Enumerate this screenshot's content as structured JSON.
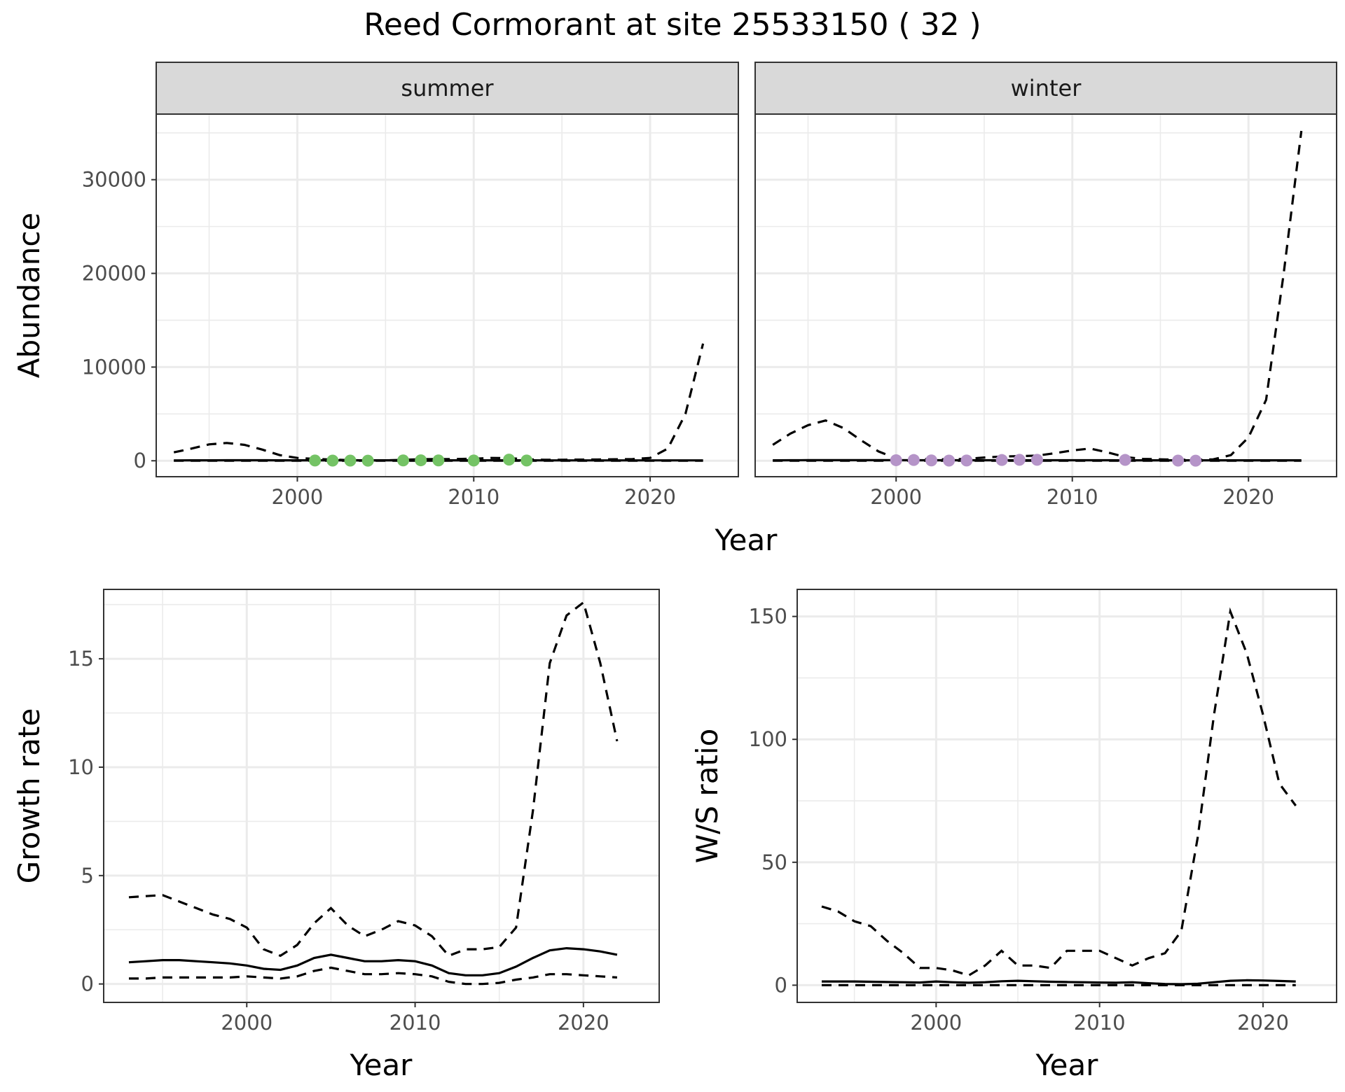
{
  "title": "Reed Cormorant at site 25533150 ( 32 )",
  "colors": {
    "summer_points": "#74c365",
    "winter_points": "#b594c8"
  },
  "chart_data": [
    {
      "id": "abundance",
      "type": "line",
      "ylabel": "Abundance",
      "xlabel": "Year",
      "xlim": [
        1992,
        2025
      ],
      "ylim": [
        -1700,
        37000
      ],
      "xticks": [
        2000,
        2010,
        2020
      ],
      "yticks": [
        0,
        10000,
        20000,
        30000
      ],
      "tick_labels_x": [
        "2000",
        "2010",
        "2020"
      ],
      "tick_labels_y": [
        "0",
        "10000",
        "20000",
        "30000"
      ],
      "grid": true,
      "facets": [
        {
          "label": "summer",
          "x": [
            1993,
            1994,
            1995,
            1996,
            1997,
            1998,
            1999,
            2000,
            2001,
            2002,
            2003,
            2004,
            2005,
            2006,
            2007,
            2008,
            2009,
            2010,
            2011,
            2012,
            2013,
            2014,
            2015,
            2016,
            2017,
            2018,
            2019,
            2020,
            2021,
            2022,
            2023
          ],
          "series": [
            {
              "style": "solid",
              "values": [
                40,
                45,
                50,
                55,
                55,
                55,
                50,
                50,
                50,
                45,
                45,
                45,
                45,
                45,
                45,
                45,
                45,
                45,
                45,
                45,
                45,
                40,
                40,
                40,
                40,
                40,
                40,
                40,
                40,
                40,
                40
              ]
            },
            {
              "style": "dashed",
              "values": [
                900,
                1300,
                1750,
                1900,
                1700,
                1200,
                600,
                300,
                200,
                120,
                60,
                40,
                50,
                100,
                170,
                180,
                180,
                220,
                300,
                280,
                150,
                100,
                110,
                120,
                130,
                160,
                180,
                300,
                1300,
                5000,
                12500
              ]
            },
            {
              "style": "dashed",
              "values": [
                0,
                0,
                0,
                0,
                0,
                0,
                0,
                0,
                0,
                0,
                0,
                0,
                0,
                0,
                0,
                0,
                0,
                0,
                0,
                0,
                0,
                0,
                0,
                0,
                0,
                0,
                0,
                0,
                0,
                0,
                0
              ]
            }
          ],
          "points": {
            "x": [
              2001,
              2002,
              2003,
              2004,
              2006,
              2007,
              2008,
              2010,
              2012,
              2013
            ],
            "y": [
              30,
              20,
              20,
              10,
              40,
              50,
              40,
              30,
              120,
              30
            ]
          }
        },
        {
          "label": "winter",
          "x": [
            1993,
            1994,
            1995,
            1996,
            1997,
            1998,
            1999,
            2000,
            2001,
            2002,
            2003,
            2004,
            2005,
            2006,
            2007,
            2008,
            2009,
            2010,
            2011,
            2012,
            2013,
            2014,
            2015,
            2016,
            2017,
            2018,
            2019,
            2020,
            2021,
            2022,
            2023
          ],
          "series": [
            {
              "style": "solid",
              "values": [
                50,
                55,
                60,
                65,
                65,
                65,
                60,
                60,
                55,
                55,
                55,
                55,
                55,
                55,
                55,
                55,
                55,
                55,
                55,
                55,
                50,
                50,
                45,
                45,
                45,
                45,
                45,
                45,
                45,
                45,
                45
              ]
            },
            {
              "style": "dashed",
              "values": [
                1700,
                2900,
                3800,
                4300,
                3500,
                2200,
                1000,
                250,
                200,
                180,
                150,
                200,
                350,
                450,
                500,
                550,
                800,
                1100,
                1300,
                900,
                400,
                200,
                150,
                100,
                110,
                150,
                600,
                2500,
                6500,
                20000,
                35200
              ]
            },
            {
              "style": "dashed",
              "values": [
                0,
                0,
                0,
                0,
                0,
                0,
                0,
                0,
                0,
                0,
                0,
                0,
                0,
                0,
                0,
                0,
                0,
                0,
                0,
                0,
                0,
                0,
                0,
                0,
                0,
                0,
                0,
                0,
                0,
                0,
                0
              ]
            }
          ],
          "points": {
            "x": [
              2000,
              2001,
              2002,
              2003,
              2004,
              2006,
              2007,
              2008,
              2013,
              2016,
              2017
            ],
            "y": [
              60,
              80,
              40,
              20,
              30,
              80,
              100,
              100,
              90,
              20,
              10
            ]
          }
        }
      ]
    },
    {
      "id": "growth",
      "type": "line",
      "ylabel": "Growth rate",
      "xlabel": "Year",
      "xlim": [
        1991.5,
        2024.5
      ],
      "ylim": [
        -0.85,
        18.2
      ],
      "xticks": [
        2000,
        2010,
        2020
      ],
      "yticks": [
        0,
        5,
        10,
        15
      ],
      "tick_labels_x": [
        "2000",
        "2010",
        "2020"
      ],
      "tick_labels_y": [
        "0",
        "5",
        "10",
        "15"
      ],
      "grid": true,
      "x": [
        1993,
        1994,
        1995,
        1996,
        1997,
        1998,
        1999,
        2000,
        2001,
        2002,
        2003,
        2004,
        2005,
        2006,
        2007,
        2008,
        2009,
        2010,
        2011,
        2012,
        2013,
        2014,
        2015,
        2016,
        2017,
        2018,
        2019,
        2020,
        2021,
        2022
      ],
      "series": [
        {
          "style": "solid",
          "values": [
            1.0,
            1.05,
            1.1,
            1.1,
            1.05,
            1.0,
            0.95,
            0.85,
            0.7,
            0.65,
            0.85,
            1.2,
            1.35,
            1.2,
            1.05,
            1.05,
            1.1,
            1.05,
            0.85,
            0.5,
            0.4,
            0.4,
            0.5,
            0.8,
            1.2,
            1.55,
            1.65,
            1.6,
            1.5,
            1.35
          ]
        },
        {
          "style": "dashed",
          "values": [
            4.0,
            4.05,
            4.1,
            3.8,
            3.5,
            3.2,
            3.0,
            2.6,
            1.6,
            1.3,
            1.8,
            2.8,
            3.5,
            2.7,
            2.2,
            2.5,
            2.9,
            2.7,
            2.2,
            1.3,
            1.6,
            1.6,
            1.7,
            2.6,
            8.0,
            14.8,
            17.0,
            17.6,
            14.8,
            11.2
          ]
        },
        {
          "style": "dashed",
          "values": [
            0.25,
            0.25,
            0.3,
            0.3,
            0.3,
            0.3,
            0.3,
            0.35,
            0.3,
            0.25,
            0.35,
            0.6,
            0.75,
            0.6,
            0.45,
            0.45,
            0.5,
            0.45,
            0.35,
            0.1,
            0.0,
            0.0,
            0.05,
            0.2,
            0.3,
            0.45,
            0.45,
            0.4,
            0.35,
            0.3
          ]
        }
      ]
    },
    {
      "id": "ratio",
      "type": "line",
      "ylabel": "W/S ratio",
      "xlabel": "Year",
      "xlim": [
        1991.5,
        2024.5
      ],
      "ylim": [
        -7,
        161
      ],
      "xticks": [
        2000,
        2010,
        2020
      ],
      "yticks": [
        0,
        50,
        100,
        150
      ],
      "tick_labels_x": [
        "2000",
        "2010",
        "2020"
      ],
      "tick_labels_y": [
        "0",
        "50",
        "100",
        "150"
      ],
      "grid": true,
      "x": [
        1993,
        1994,
        1995,
        1996,
        1997,
        1998,
        1999,
        2000,
        2001,
        2002,
        2003,
        2004,
        2005,
        2006,
        2007,
        2008,
        2009,
        2010,
        2011,
        2012,
        2013,
        2014,
        2015,
        2016,
        2017,
        2018,
        2019,
        2020,
        2021,
        2022
      ],
      "series": [
        {
          "style": "solid",
          "values": [
            1.5,
            1.5,
            1.5,
            1.4,
            1.3,
            1.2,
            1.1,
            1.5,
            1.2,
            1.0,
            1.2,
            1.6,
            1.8,
            1.6,
            1.4,
            1.3,
            1.2,
            1.1,
            1.0,
            1.2,
            0.8,
            0.5,
            0.4,
            0.6,
            1.2,
            1.8,
            2.0,
            1.9,
            1.7,
            1.5
          ]
        },
        {
          "style": "dashed",
          "values": [
            32,
            30,
            26,
            24,
            18,
            13,
            7,
            7,
            6,
            4,
            8,
            14,
            8,
            8,
            7,
            14,
            14,
            14,
            11,
            8,
            11,
            13,
            22,
            60,
            110,
            152,
            135,
            110,
            82,
            73
          ]
        },
        {
          "style": "dashed",
          "values": [
            0,
            0,
            0,
            0,
            0,
            0,
            0,
            0,
            0,
            0,
            0,
            0,
            0,
            0,
            0,
            0,
            0,
            0,
            0,
            0,
            0,
            0,
            0,
            0,
            0,
            0,
            0,
            0,
            0,
            0
          ]
        }
      ]
    }
  ]
}
